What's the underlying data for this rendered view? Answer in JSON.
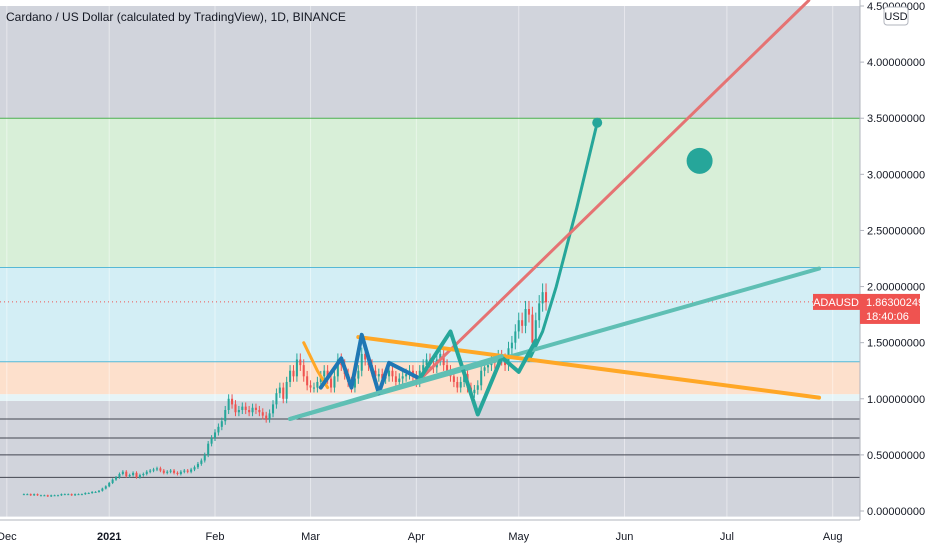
{
  "chart_data": {
    "type": "candlestick",
    "title": "Cardano / US Dollar (calculated by TradingView), 1D, BINANCE",
    "currency_label": "USD",
    "ylim": [
      -0.05,
      4.5
    ],
    "yticks": [
      {
        "value": 4.5,
        "label": "4.50000000"
      },
      {
        "value": 4.0,
        "label": "4.00000000"
      },
      {
        "value": 3.5,
        "label": "3.50000000"
      },
      {
        "value": 3.0,
        "label": "3.00000000"
      },
      {
        "value": 2.5,
        "label": "2.50000000"
      },
      {
        "value": 2.0,
        "label": "2.00000000"
      },
      {
        "value": 1.5,
        "label": "1.50000000"
      },
      {
        "value": 1.0,
        "label": "1.00000000"
      },
      {
        "value": 0.5,
        "label": "0.50000000"
      },
      {
        "value": 0.0,
        "label": "0.00000000"
      }
    ],
    "xticks": [
      {
        "label": "Dec",
        "day": -5
      },
      {
        "label": "2021",
        "day": 25
      },
      {
        "label": "Feb",
        "day": 56
      },
      {
        "label": "Mar",
        "day": 84
      },
      {
        "label": "Apr",
        "day": 115
      },
      {
        "label": "May",
        "day": 145
      },
      {
        "label": "Jun",
        "day": 176
      },
      {
        "label": "Jul",
        "day": 206
      },
      {
        "label": "Aug",
        "day": 237
      }
    ],
    "xlim": [
      -7,
      245
    ],
    "last_price": {
      "symbol": "ADAUSD",
      "value": "1.86300249",
      "countdown": "18:40:06",
      "price": 1.863
    },
    "zones": [
      {
        "y1": 4.5,
        "y2": 3.5,
        "color": "#d1d4dc"
      },
      {
        "y1": 3.5,
        "y2": 2.17,
        "color": "#d8efd8"
      },
      {
        "y1": 2.17,
        "y2": 1.33,
        "color": "#d3eef5"
      },
      {
        "y1": 1.33,
        "y2": 1.04,
        "color": "#fde0cc"
      },
      {
        "y1": 1.04,
        "y2": 0.98,
        "color": "#e6f4f7"
      },
      {
        "y1": 0.98,
        "y2": -0.05,
        "color": "#d1d4dc"
      }
    ],
    "hlines": [
      3.5,
      2.17,
      1.33,
      0.82,
      0.65,
      0.5,
      0.3
    ],
    "series": [
      {
        "kind": "ohlc",
        "start_day": 0,
        "closes": [
          0.15,
          0.15,
          0.14,
          0.15,
          0.14,
          0.14,
          0.14,
          0.13,
          0.14,
          0.14,
          0.14,
          0.15,
          0.15,
          0.15,
          0.14,
          0.15,
          0.15,
          0.15,
          0.16,
          0.16,
          0.17,
          0.17,
          0.18,
          0.2,
          0.22,
          0.25,
          0.28,
          0.3,
          0.33,
          0.35,
          0.31,
          0.32,
          0.34,
          0.3,
          0.32,
          0.33,
          0.35,
          0.36,
          0.37,
          0.38,
          0.36,
          0.34,
          0.35,
          0.36,
          0.34,
          0.33,
          0.35,
          0.36,
          0.35,
          0.37,
          0.39,
          0.42,
          0.45,
          0.5,
          0.6,
          0.65,
          0.7,
          0.75,
          0.8,
          0.9,
          1.0,
          0.95,
          0.88,
          0.9,
          0.93,
          0.9,
          0.88,
          0.92,
          0.9,
          0.88,
          0.85,
          0.82,
          0.87,
          0.95,
          1.05,
          1.1,
          1.0,
          1.15,
          1.25,
          1.2,
          1.35,
          1.3,
          1.2,
          1.12,
          1.1,
          1.1,
          1.15,
          1.2,
          1.25,
          1.18,
          1.1,
          1.2,
          1.35,
          1.3,
          1.22,
          1.15,
          1.1,
          1.18,
          1.25,
          1.4,
          1.35,
          1.3,
          1.25,
          1.2,
          1.22,
          1.18,
          1.2,
          1.25,
          1.2,
          1.15,
          1.18,
          1.2,
          1.22,
          1.25,
          1.2,
          1.15,
          1.25,
          1.3,
          1.35,
          1.3,
          1.28,
          1.35,
          1.4,
          1.3,
          1.25,
          1.2,
          1.15,
          1.1,
          1.15,
          1.22,
          1.1,
          1.05,
          1.08,
          1.12,
          1.25,
          1.28,
          1.3,
          1.35,
          1.32,
          1.38,
          1.35,
          1.3,
          1.45,
          1.5,
          1.6,
          1.7,
          1.65,
          1.8,
          1.75,
          1.5,
          1.7,
          1.85,
          1.95,
          1.86
        ]
      }
    ],
    "drawings": [
      {
        "kind": "polyline",
        "name": "projection-path",
        "color": "#26a69a",
        "width": 3,
        "points": [
          [
            148,
            1.34
          ],
          [
            152,
            1.6
          ],
          [
            156,
            2.0
          ],
          [
            162,
            2.7
          ],
          [
            168,
            3.46
          ]
        ],
        "end_dot": true
      },
      {
        "kind": "line",
        "name": "red-trendline",
        "color": "#e57373",
        "width": 3,
        "points": [
          [
            117,
            1.2
          ],
          [
            230,
            4.55
          ]
        ]
      },
      {
        "kind": "line",
        "name": "teal-support-line",
        "color": "#5fbfb4",
        "width": 4,
        "points": [
          [
            78,
            0.82
          ],
          [
            233,
            2.16
          ]
        ]
      },
      {
        "kind": "line",
        "name": "orange-resistance-line",
        "color": "#ffa726",
        "width": 4,
        "points": [
          [
            98,
            1.55
          ],
          [
            233,
            1.01
          ]
        ]
      },
      {
        "kind": "polyline",
        "name": "orange-leg",
        "color": "#ffa726",
        "width": 3,
        "points": [
          [
            82,
            1.5
          ],
          [
            86,
            1.25
          ],
          [
            89,
            1.1
          ]
        ]
      },
      {
        "kind": "polyline",
        "name": "blue-zigzag",
        "color": "#1f77b4",
        "width": 4,
        "points": [
          [
            87,
            1.1
          ],
          [
            93,
            1.36
          ],
          [
            96,
            1.1
          ],
          [
            99,
            1.57
          ],
          [
            104,
            1.05
          ],
          [
            107,
            1.32
          ],
          [
            116,
            1.18
          ]
        ]
      },
      {
        "kind": "polyline",
        "name": "green-zigzag",
        "color": "#26a69a",
        "width": 4,
        "points": [
          [
            116,
            1.18
          ],
          [
            125,
            1.6
          ],
          [
            133,
            0.86
          ],
          [
            140,
            1.37
          ],
          [
            145,
            1.24
          ],
          [
            150,
            1.52
          ]
        ]
      },
      {
        "kind": "line",
        "name": "teal-triangle-base",
        "color": "#5fbfb4",
        "width": 4,
        "points": [
          [
            78,
            0.82
          ],
          [
            140,
            1.38
          ]
        ]
      },
      {
        "kind": "dot",
        "name": "target-dot",
        "color": "#26a69a",
        "x": 198,
        "y": 3.12,
        "r": 13
      }
    ]
  }
}
